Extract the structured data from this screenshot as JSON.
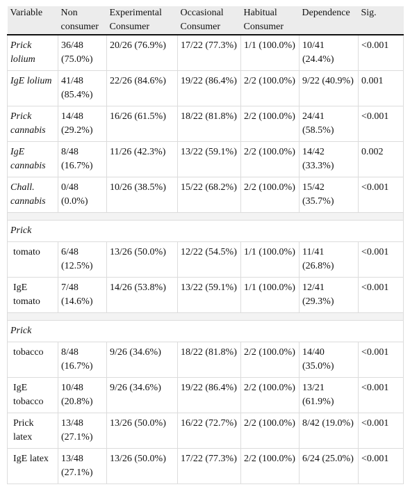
{
  "table": {
    "header": [
      "Variable",
      "Non consumer",
      "Experimental Consumer",
      "Occasional Consumer",
      "Habitual Consumer",
      "Dependence",
      "Sig."
    ],
    "rows": [
      [
        "Prick lolium",
        "36/48 (75.0%)",
        "20/26 (76.9%)",
        "17/22 (77.3%)",
        "1/1 (100.0%)",
        "10/41 (24.4%)",
        "<0.001"
      ],
      [
        "IgE lolium",
        "41/48 (85.4%)",
        "22/26 (84.6%)",
        "19/22 (86.4%)",
        "2/2 (100.0%)",
        "9/22 (40.9%)",
        "0.001"
      ],
      [
        "Prick cannabis",
        "14/48 (29.2%)",
        "16/26 (61.5%)",
        "18/22 (81.8%)",
        "2/2 (100.0%)",
        "24/41 (58.5%)",
        "<0.001"
      ],
      [
        "IgE cannabis",
        "8/48 (16.7%)",
        "11/26 (42.3%)",
        "13/22 (59.1%)",
        "2/2 (100.0%)",
        "14/42 (33.3%)",
        "0.002"
      ],
      [
        "Chall. cannabis",
        "0/48 (0.0%)",
        "10/26 (38.5%)",
        "15/22 (68.2%)",
        "2/2 (100.0%)",
        "15/42 (35.7%)",
        "<0.001"
      ]
    ],
    "sections": [
      {
        "title": "Prick",
        "rows": [
          [
            "tomato",
            "6/48 (12.5%)",
            "13/26 (50.0%)",
            "12/22 (54.5%)",
            "1/1 (100.0%)",
            "11/41 (26.8%)",
            "<0.001"
          ],
          [
            "IgE tomato",
            "7/48 (14.6%)",
            "14/26 (53.8%)",
            "13/22 (59.1%)",
            "1/1 (100.0%)",
            "12/41 (29.3%)",
            "<0.001"
          ]
        ]
      },
      {
        "title": "Prick",
        "rows": [
          [
            "tobacco",
            "8/48 (16.7%)",
            "9/26 (34.6%)",
            "18/22 (81.8%)",
            "2/2 (100.0%)",
            "14/40 (35.0%)",
            "<0.001"
          ],
          [
            "IgE tobacco",
            "10/48 (20.8%)",
            "9/26 (34.6%)",
            "19/22 (86.4%)",
            "2/2 (100.0%)",
            "13/21 (61.9%)",
            "<0.001"
          ],
          [
            "Prick latex",
            "13/48 (27.1%)",
            "13/26 (50.0%)",
            "16/22 (72.7%)",
            "2/2 (100.0%)",
            "8/42 (19.0%)",
            "<0.001"
          ],
          [
            "IgE latex",
            "13/48 (27.1%)",
            "13/26 (50.0%)",
            "17/22 (77.3%)",
            "2/2 (100.0%)",
            "6/24 (25.0%)",
            "<0.001"
          ]
        ]
      }
    ]
  }
}
